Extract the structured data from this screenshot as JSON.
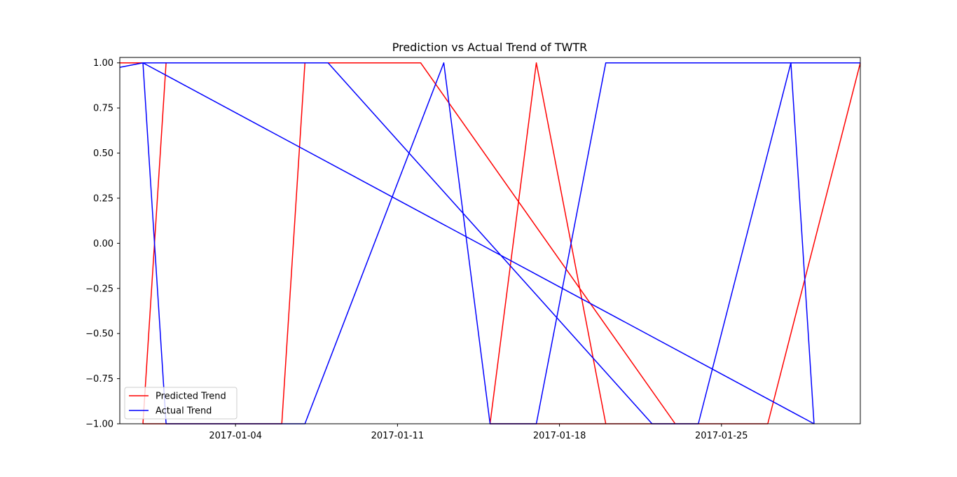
{
  "chart_data": {
    "type": "line",
    "title": "Prediction vs Actual Trend of TWTR",
    "xlabel": "",
    "ylabel": "",
    "x_ticks": [
      "2017-01-04",
      "2017-01-11",
      "2017-01-18",
      "2017-01-25"
    ],
    "y_ticks": [
      1.0,
      0.75,
      0.5,
      0.25,
      0.0,
      -0.25,
      -0.5,
      -0.75,
      -1.0
    ],
    "y_tick_labels": [
      "1.00",
      "0.75",
      "0.50",
      "0.25",
      "0.00",
      "−0.25",
      "−0.50",
      "−0.75",
      "−1.00"
    ],
    "xlim": [
      "2016-12-30",
      "2017-01-31"
    ],
    "ylim": [
      -1.0,
      1.03
    ],
    "grid": false,
    "legend_position": "lower-left",
    "series": [
      {
        "name": "Predicted Trend",
        "color": "#ff0000",
        "points": [
          [
            "2016-12-30",
            1.0
          ],
          [
            "2017-01-01",
            1.0
          ],
          [
            "2016-12-31",
            -1.0
          ],
          [
            "2017-01-06",
            -1.0
          ],
          [
            "2017-01-07",
            1.0
          ],
          [
            "2017-01-12",
            1.0
          ],
          [
            "2017-01-23",
            -1.0
          ],
          [
            "2017-01-15",
            -1.0
          ],
          [
            "2017-01-17",
            1.0
          ],
          [
            "2017-01-20",
            -1.0
          ],
          [
            "2017-01-26",
            -1.0
          ],
          [
            "2017-01-27",
            -1.0
          ],
          [
            "2017-01-31",
            1.0
          ]
        ]
      },
      {
        "name": "Actual Trend",
        "color": "#0000ff",
        "points": [
          [
            "2016-12-30",
            0.975
          ],
          [
            "2016-12-31",
            1.0
          ],
          [
            "2017-01-01",
            -1.0
          ],
          [
            "2017-01-07",
            -1.0
          ],
          [
            "2017-01-13",
            1.0
          ],
          [
            "2017-01-15",
            -1.0
          ],
          [
            "2017-01-17",
            -1.0
          ],
          [
            "2017-01-20",
            1.0
          ],
          [
            "2017-01-28",
            1.0
          ],
          [
            "2017-01-29",
            -1.0
          ],
          [
            "2016-12-31",
            1.0
          ],
          [
            "2017-01-02",
            1.0
          ],
          [
            "2017-01-08",
            1.0
          ],
          [
            "2017-01-22",
            -1.0
          ],
          [
            "2017-01-24",
            -1.0
          ],
          [
            "2017-01-28",
            1.0
          ],
          [
            "2017-01-31",
            1.0
          ]
        ]
      }
    ]
  }
}
